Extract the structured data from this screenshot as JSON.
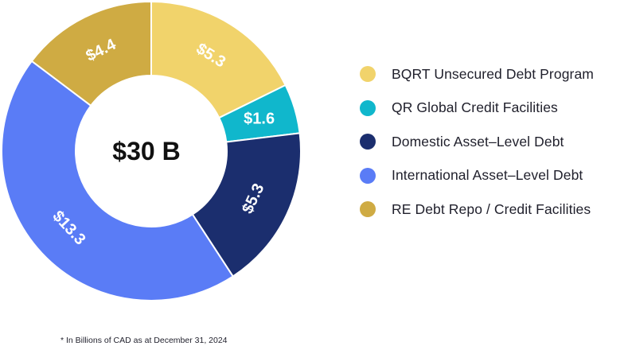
{
  "chart_data": {
    "type": "pie",
    "donut": true,
    "center_label": "$30 B",
    "slices": [
      {
        "name": "BQRT Unsecured Debt Program",
        "value": 5.3,
        "label": "$5.3",
        "color": "#f1d36b"
      },
      {
        "name": "QR Global Credit Facilities",
        "value": 1.6,
        "label": "$1.6",
        "color": "#10b7cc"
      },
      {
        "name": "Domestic Asset-Level Debt",
        "value": 5.3,
        "label": "$5.3",
        "color": "#1b2e6e"
      },
      {
        "name": "International Asset-Level Debt",
        "value": 13.3,
        "label": "$13.3",
        "color": "#5a7cf6"
      },
      {
        "name": "RE Debt Repo / Credit Facilities",
        "value": 4.4,
        "label": "$4.4",
        "color": "#cfab43"
      }
    ],
    "legend": {
      "placement": "right",
      "entries": [
        "BQRT Unsecured Debt Program",
        "QR Global Credit Facilities",
        "Domestic Asset–Level Debt",
        "International Asset–Level Debt",
        "RE Debt Repo / Credit Facilities"
      ]
    },
    "footnote": "* In Billions of CAD as at December 31, 2024"
  }
}
